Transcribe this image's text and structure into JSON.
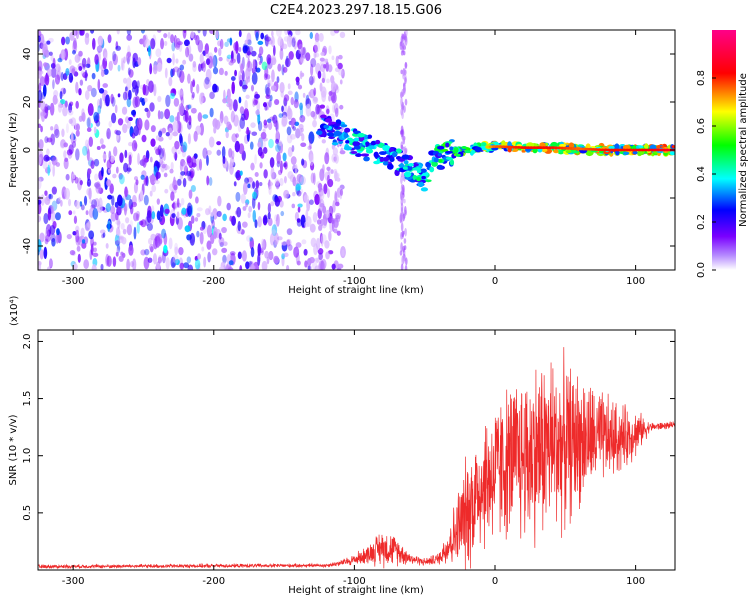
{
  "title": "C2E4.2023.297.18.15.G06",
  "chart_data": [
    {
      "type": "heatmap",
      "title": "C2E4.2023.297.18.15.G06",
      "xlabel": "Height of straight line (km)",
      "ylabel": "Frequency (Hz)",
      "xlim": [
        -325,
        128
      ],
      "ylim": [
        -50,
        50
      ],
      "xticks": [
        -300,
        -200,
        -100,
        0,
        100
      ],
      "yticks": [
        -40,
        -20,
        0,
        20,
        40
      ],
      "colorbar": {
        "label": "Normalized spectral amplitude",
        "range": [
          0.0,
          1.0
        ],
        "ticks": [
          "0.0",
          "0.2",
          "0.4",
          "0.6",
          "0.8"
        ],
        "colormap": [
          "#ffffff",
          "#7a00ff",
          "#0000ff",
          "#00ffff",
          "#00ff00",
          "#ffff00",
          "#ff0000",
          "#ff0088"
        ]
      },
      "noise_region_x": [
        -325,
        -120
      ],
      "signal_track": {
        "x": [
          -125,
          -115,
          -105,
          -95,
          -85,
          -75,
          -65,
          -55,
          -50,
          -45,
          -40,
          -30,
          -20,
          -10,
          0,
          20,
          40,
          60,
          80,
          100,
          128
        ],
        "freq": [
          12,
          8,
          5,
          2,
          0,
          -3,
          -6,
          -10,
          -12,
          -5,
          -3,
          -1,
          0,
          1,
          1.5,
          1,
          1,
          0.5,
          0,
          0,
          0
        ],
        "amplitude": [
          0.4,
          0.45,
          0.5,
          0.5,
          0.5,
          0.5,
          0.5,
          0.55,
          0.5,
          0.55,
          0.6,
          0.6,
          0.7,
          0.7,
          0.8,
          0.85,
          0.85,
          0.8,
          0.85,
          0.85,
          0.9
        ]
      }
    },
    {
      "type": "line",
      "xlabel": "Height of straight line (km)",
      "ylabel": "SNR (10 * v/v)",
      "y_multiplier": "(x10⁴)",
      "xlim": [
        -325,
        128
      ],
      "ylim": [
        0.0,
        2.1
      ],
      "xticks": [
        -300,
        -200,
        -100,
        0,
        100
      ],
      "yticks": [
        "0.5",
        "1.0",
        "1.5",
        "2.0"
      ],
      "color": "#ee2a2a",
      "envelope": {
        "x": [
          -325,
          -120,
          -110,
          -100,
          -90,
          -80,
          -70,
          -60,
          -50,
          -40,
          -30,
          -20,
          -10,
          0,
          10,
          20,
          30,
          40,
          50,
          60,
          70,
          80,
          90,
          100,
          110,
          128
        ],
        "base": [
          0.03,
          0.04,
          0.06,
          0.09,
          0.14,
          0.2,
          0.17,
          0.1,
          0.07,
          0.1,
          0.28,
          0.5,
          0.75,
          0.85,
          0.95,
          1.0,
          1.05,
          1.1,
          1.1,
          1.15,
          1.15,
          1.15,
          1.15,
          1.2,
          1.25,
          1.27
        ],
        "amp": [
          0.02,
          0.02,
          0.03,
          0.06,
          0.1,
          0.2,
          0.15,
          0.06,
          0.04,
          0.06,
          0.3,
          0.6,
          0.7,
          0.75,
          0.8,
          0.9,
          0.95,
          0.95,
          0.85,
          0.7,
          0.55,
          0.45,
          0.35,
          0.25,
          0.05,
          0.03
        ]
      }
    }
  ]
}
